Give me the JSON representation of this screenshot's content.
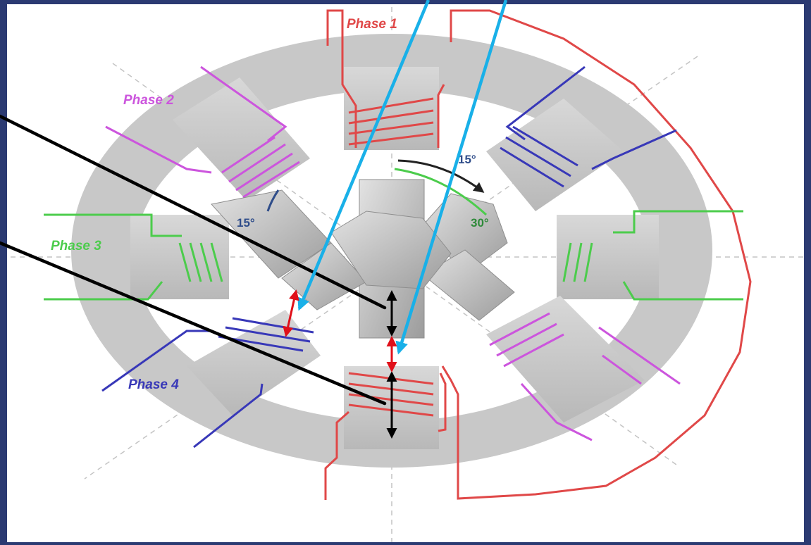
{
  "phases": {
    "phase1": {
      "label": "Phase 1",
      "color": "#e04848"
    },
    "phase2": {
      "label": "Phase 2",
      "color": "#cc55dd"
    },
    "phase3": {
      "label": "Phase 3",
      "color": "#4ccc4c"
    },
    "phase4": {
      "label": "Phase 4",
      "color": "#3838b8"
    }
  },
  "angles": {
    "step_left": "15°",
    "step_top": "15°",
    "rotor_angle": "30°"
  },
  "colors": {
    "slide_border": "#2b3a72",
    "stator": "#c8c8c8",
    "rotor": "#bdbdbd",
    "pointer_black": "#000000",
    "pointer_blue": "#19b0e8",
    "airgap_red": "#e0101a"
  }
}
